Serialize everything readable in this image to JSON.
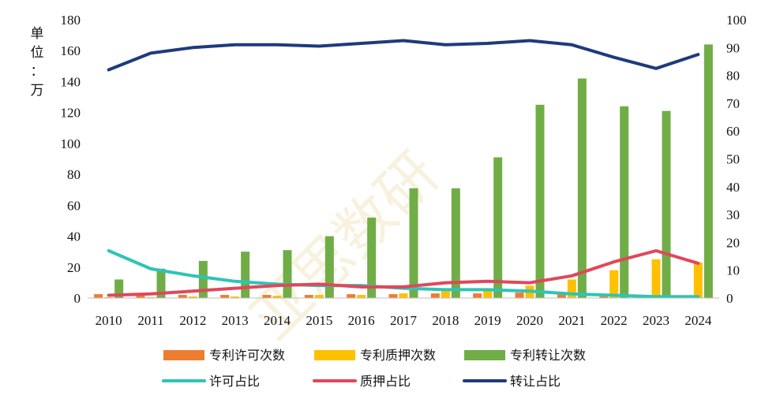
{
  "chart_data": {
    "type": "bar",
    "unit_label": "单位：万",
    "watermark": "亚思数研",
    "categories": [
      "2010",
      "2011",
      "2012",
      "2013",
      "2014",
      "2015",
      "2016",
      "2017",
      "2018",
      "2019",
      "2020",
      "2021",
      "2022",
      "2023",
      "2024"
    ],
    "series": [
      {
        "name": "专利许可次数",
        "type": "bar",
        "axis": "left",
        "color": "#ED7D31",
        "values": [
          2.5,
          2.0,
          2.0,
          2.0,
          2.0,
          2.0,
          2.5,
          2.5,
          3.0,
          3.0,
          3.5,
          3.0,
          1.0,
          1.0,
          1.0
        ]
      },
      {
        "name": "专利质押次数",
        "type": "bar",
        "axis": "left",
        "color": "#FFC000",
        "values": [
          0.5,
          0.5,
          1.0,
          1.0,
          1.5,
          2.0,
          2.0,
          3.0,
          4.5,
          5.0,
          8.0,
          12.0,
          18.0,
          25.0,
          23.0
        ]
      },
      {
        "name": "专利转让次数",
        "type": "bar",
        "axis": "left",
        "color": "#70AD47",
        "values": [
          12,
          19,
          24,
          30,
          31,
          40,
          52,
          71,
          71,
          91,
          125,
          142,
          124,
          121,
          164
        ]
      },
      {
        "name": "许可占比",
        "type": "line",
        "axis": "right",
        "color": "#2EC4B6",
        "values": [
          17.0,
          10.5,
          8.0,
          6.0,
          5.0,
          4.5,
          4.5,
          3.5,
          3.0,
          3.0,
          2.5,
          1.5,
          1.0,
          0.5,
          0.5
        ]
      },
      {
        "name": "质押占比",
        "type": "line",
        "axis": "right",
        "color": "#E0475B",
        "values": [
          1.0,
          1.5,
          2.5,
          3.5,
          4.5,
          5.0,
          4.0,
          4.0,
          5.5,
          6.0,
          5.5,
          8.0,
          13.0,
          17.0,
          12.5
        ]
      },
      {
        "name": "转让占比",
        "type": "line",
        "axis": "right",
        "color": "#1F3A7D",
        "values": [
          82,
          88,
          90,
          91,
          91,
          90.5,
          91.5,
          92.5,
          91,
          91.5,
          92.5,
          91,
          86.5,
          82.5,
          87.5
        ]
      }
    ],
    "left_axis": {
      "min": 0,
      "max": 180,
      "ticks": [
        "0",
        "20",
        "40",
        "60",
        "80",
        "100",
        "120",
        "140",
        "160",
        "180"
      ]
    },
    "right_axis": {
      "min": 0,
      "max": 100,
      "ticks": [
        "0",
        "10",
        "20",
        "30",
        "40",
        "50",
        "60",
        "70",
        "80",
        "90",
        "100"
      ]
    },
    "legend_position": "bottom",
    "grid": false
  }
}
